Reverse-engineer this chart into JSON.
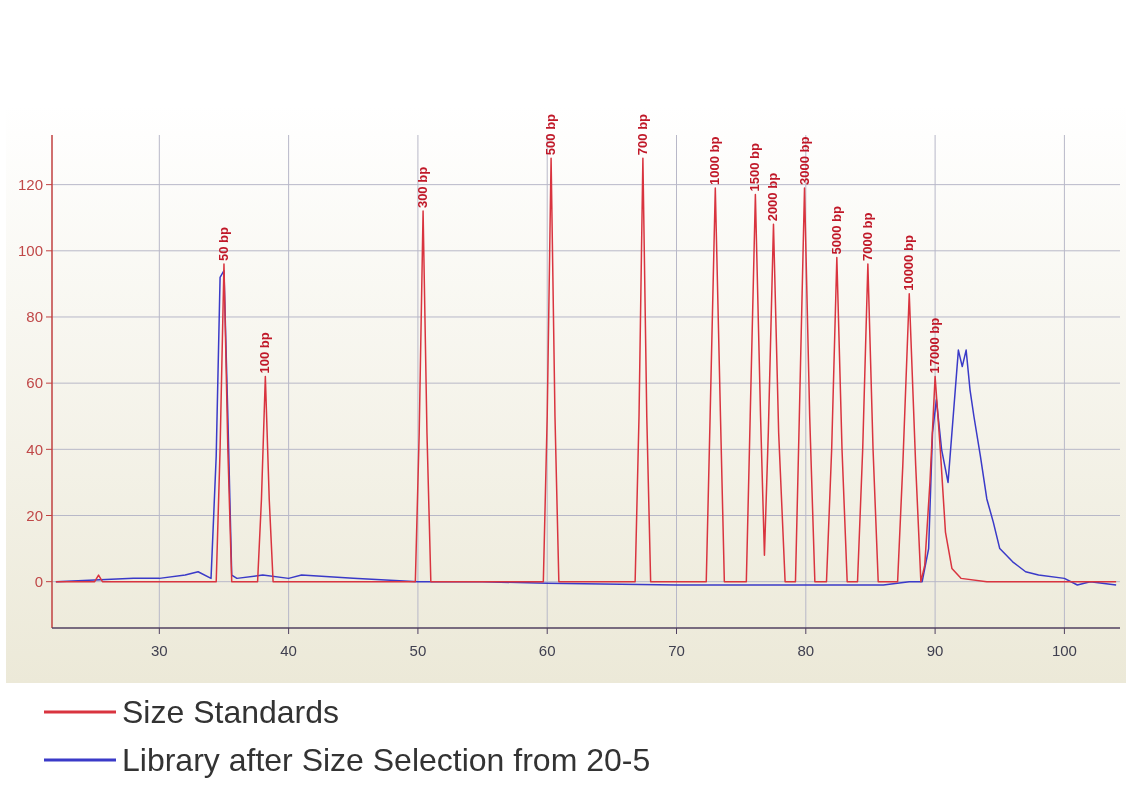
{
  "chart_data": {
    "type": "line",
    "xlim": [
      21.7,
      104.3
    ],
    "ylim": [
      -14,
      135
    ],
    "xticks": [
      30,
      40,
      50,
      60,
      70,
      80,
      90,
      100
    ],
    "yticks": [
      0,
      20,
      40,
      60,
      80,
      100,
      120
    ],
    "grid": true,
    "legend": "bottom",
    "line_style": "solid",
    "series": [
      {
        "name": "Size Standards",
        "color": "#d9343f",
        "x": [
          22,
          25,
          25.3,
          25.6,
          34.4,
          34.7,
          35.0,
          35.3,
          35.6,
          37.6,
          37.9,
          38.2,
          38.5,
          38.8,
          49.8,
          50.1,
          50.4,
          50.7,
          51.0,
          59.7,
          60.0,
          60.3,
          60.6,
          60.9,
          66.8,
          67.1,
          67.4,
          67.7,
          68.0,
          72.3,
          72.6,
          73.0,
          73.4,
          73.7,
          75.4,
          75.7,
          76.1,
          76.5,
          76.8,
          77.1,
          77.5,
          77.9,
          78.4,
          79.2,
          79.5,
          79.9,
          80.3,
          80.7,
          81.6,
          82.0,
          82.4,
          82.8,
          83.2,
          84.0,
          84.4,
          84.8,
          85.2,
          85.6,
          87.1,
          87.5,
          88.0,
          88.5,
          88.9,
          89.2,
          89.6,
          90.0,
          90.4,
          90.8,
          91.3,
          92,
          94,
          104
        ],
        "values": [
          0,
          0,
          2,
          0,
          0,
          40,
          96,
          40,
          0,
          0,
          25,
          62,
          25,
          0,
          0,
          45,
          112,
          45,
          0,
          0,
          50,
          128,
          50,
          0,
          0,
          50,
          128,
          50,
          0,
          0,
          50,
          119,
          50,
          0,
          0,
          50,
          117,
          50,
          8,
          45,
          108,
          45,
          0,
          0,
          50,
          119,
          50,
          0,
          0,
          40,
          98,
          40,
          0,
          0,
          40,
          96,
          40,
          0,
          0,
          35,
          87,
          35,
          0,
          5,
          30,
          62,
          40,
          15,
          4,
          1,
          0,
          0
        ]
      },
      {
        "name": "Library after Size Selection from 20-5",
        "color": "#3a3ac8",
        "x": [
          22,
          28,
          30,
          32,
          33,
          34,
          34.4,
          34.7,
          35.0,
          35.3,
          35.6,
          36,
          38,
          40,
          41,
          45,
          50,
          55,
          60,
          70,
          80,
          86,
          88,
          89,
          89.5,
          89.8,
          90.1,
          90.5,
          91,
          91.4,
          91.8,
          92.1,
          92.4,
          92.7,
          93,
          93.5,
          94,
          94.5,
          95,
          96,
          97,
          98,
          100,
          101,
          102,
          104
        ],
        "values": [
          0,
          1,
          1,
          2,
          3,
          1,
          38,
          92,
          94,
          50,
          2,
          1,
          2,
          1,
          2,
          1,
          0,
          0,
          -0.5,
          -1,
          -1,
          -1,
          0,
          0,
          10,
          45,
          55,
          40,
          30,
          50,
          70,
          65,
          70,
          58,
          50,
          38,
          25,
          18,
          10,
          6,
          3,
          2,
          1,
          -1,
          0,
          -1
        ]
      }
    ],
    "annotations": [
      {
        "text": "50 bp",
        "x": 35.0,
        "y": 96
      },
      {
        "text": "100 bp",
        "x": 38.2,
        "y": 62
      },
      {
        "text": "300 bp",
        "x": 50.4,
        "y": 112
      },
      {
        "text": "500 bp",
        "x": 60.3,
        "y": 128
      },
      {
        "text": "700 bp",
        "x": 67.4,
        "y": 128
      },
      {
        "text": "1000 bp",
        "x": 73.0,
        "y": 119
      },
      {
        "text": "1500 bp",
        "x": 76.1,
        "y": 117
      },
      {
        "text": "2000 bp",
        "x": 77.5,
        "y": 108
      },
      {
        "text": "3000 bp",
        "x": 79.9,
        "y": 119
      },
      {
        "text": "5000 bp",
        "x": 82.4,
        "y": 98
      },
      {
        "text": "7000 bp",
        "x": 84.8,
        "y": 96
      },
      {
        "text": "10000 bp",
        "x": 88.0,
        "y": 87
      },
      {
        "text": "17000 bp",
        "x": 90.0,
        "y": 62
      }
    ]
  }
}
